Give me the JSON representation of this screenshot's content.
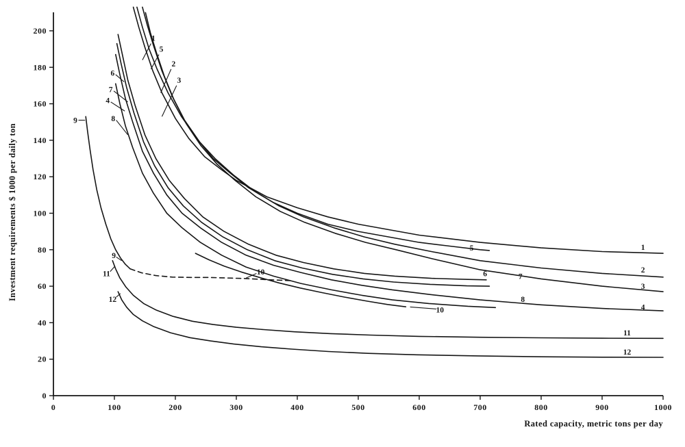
{
  "figure": {
    "background": "#ffffff",
    "ink": "#161616"
  },
  "chart_data": {
    "type": "line",
    "title": "",
    "xlabel": "Rated capacity, metric tons per day",
    "ylabel": "Investment requirements $ 1000 per daily ton",
    "xlim": [
      0,
      1000
    ],
    "ylim": [
      0,
      200
    ],
    "x_ticks": [
      0,
      100,
      200,
      300,
      400,
      500,
      600,
      700,
      800,
      900,
      1000
    ],
    "y_ticks": [
      0,
      20,
      40,
      60,
      80,
      100,
      120,
      140,
      160,
      180,
      200
    ],
    "grid": false,
    "legend": "labels-on-curves",
    "series": [
      {
        "name": "1",
        "style": "solid",
        "points": [
          [
            131,
            213
          ],
          [
            140,
            202
          ],
          [
            150,
            191
          ],
          [
            163,
            178
          ],
          [
            178,
            166
          ],
          [
            200,
            152
          ],
          [
            222,
            141
          ],
          [
            248,
            131
          ],
          [
            275,
            124
          ],
          [
            300,
            118
          ],
          [
            350,
            109
          ],
          [
            400,
            103
          ],
          [
            450,
            98
          ],
          [
            500,
            94
          ],
          [
            550,
            91
          ],
          [
            600,
            88
          ],
          [
            700,
            84
          ],
          [
            800,
            81
          ],
          [
            900,
            79
          ],
          [
            1000,
            78
          ]
        ]
      },
      {
        "name": "5",
        "style": "solid",
        "points": [
          [
            137,
            213
          ],
          [
            146,
            202
          ],
          [
            157,
            190
          ],
          [
            170,
            179
          ],
          [
            188,
            166
          ],
          [
            210,
            153
          ],
          [
            235,
            141
          ],
          [
            262,
            130
          ],
          [
            290,
            122
          ],
          [
            320,
            114
          ],
          [
            360,
            106
          ],
          [
            400,
            100
          ],
          [
            450,
            94
          ],
          [
            500,
            90
          ],
          [
            550,
            87
          ],
          [
            600,
            84
          ],
          [
            650,
            82
          ],
          [
            700,
            80
          ],
          [
            715,
            79.6
          ]
        ]
      },
      {
        "name": "2",
        "style": "solid",
        "points": [
          [
            146,
            213
          ],
          [
            154,
            203
          ],
          [
            164,
            192
          ],
          [
            178,
            178
          ],
          [
            195,
            164
          ],
          [
            215,
            151
          ],
          [
            240,
            139
          ],
          [
            265,
            130
          ],
          [
            295,
            121
          ],
          [
            330,
            112
          ],
          [
            370,
            104
          ],
          [
            410,
            98
          ],
          [
            460,
            92
          ],
          [
            510,
            87
          ],
          [
            560,
            83
          ],
          [
            620,
            79
          ],
          [
            700,
            74
          ],
          [
            800,
            70
          ],
          [
            900,
            67
          ],
          [
            1000,
            65
          ]
        ]
      },
      {
        "name": "3",
        "style": "solid",
        "points": [
          [
            151,
            210
          ],
          [
            159,
            199
          ],
          [
            169,
            188
          ],
          [
            182,
            175
          ],
          [
            198,
            162
          ],
          [
            218,
            149
          ],
          [
            242,
            137
          ],
          [
            268,
            127
          ],
          [
            298,
            118
          ],
          [
            332,
            109
          ],
          [
            372,
            101
          ],
          [
            412,
            95
          ],
          [
            462,
            89
          ],
          [
            512,
            84
          ],
          [
            562,
            80
          ],
          [
            622,
            75
          ],
          [
            700,
            69
          ],
          [
            800,
            64
          ],
          [
            900,
            60
          ],
          [
            1000,
            57
          ]
        ]
      },
      {
        "name": "6",
        "style": "solid",
        "points": [
          [
            106,
            198
          ],
          [
            113,
            187
          ],
          [
            122,
            173
          ],
          [
            134,
            159
          ],
          [
            150,
            143
          ],
          [
            168,
            130
          ],
          [
            190,
            118
          ],
          [
            215,
            108
          ],
          [
            245,
            98
          ],
          [
            280,
            90
          ],
          [
            320,
            83
          ],
          [
            365,
            77
          ],
          [
            410,
            73
          ],
          [
            460,
            69.5
          ],
          [
            510,
            67
          ],
          [
            560,
            65.5
          ],
          [
            620,
            64.3
          ],
          [
            680,
            63.7
          ],
          [
            710,
            63.5
          ]
        ]
      },
      {
        "name": "7",
        "style": "solid",
        "points": [
          [
            104,
            193
          ],
          [
            111,
            182
          ],
          [
            120,
            169
          ],
          [
            132,
            155
          ],
          [
            148,
            139
          ],
          [
            166,
            126
          ],
          [
            188,
            114
          ],
          [
            213,
            104
          ],
          [
            243,
            95
          ],
          [
            278,
            87
          ],
          [
            318,
            80
          ],
          [
            363,
            74
          ],
          [
            408,
            70
          ],
          [
            458,
            66.5
          ],
          [
            508,
            64
          ],
          [
            558,
            62.3
          ],
          [
            618,
            61
          ],
          [
            678,
            60.2
          ],
          [
            715,
            60
          ]
        ]
      },
      {
        "name": "4",
        "style": "solid",
        "points": [
          [
            102,
            187
          ],
          [
            109,
            176
          ],
          [
            118,
            163
          ],
          [
            130,
            150
          ],
          [
            146,
            134
          ],
          [
            164,
            122
          ],
          [
            186,
            110
          ],
          [
            211,
            100
          ],
          [
            241,
            92
          ],
          [
            276,
            84
          ],
          [
            316,
            77
          ],
          [
            361,
            71.5
          ],
          [
            406,
            67.5
          ],
          [
            456,
            63.5
          ],
          [
            506,
            60.5
          ],
          [
            556,
            58
          ],
          [
            616,
            55.5
          ],
          [
            700,
            52.5
          ],
          [
            800,
            49.8
          ],
          [
            900,
            47.8
          ],
          [
            1000,
            46.5
          ]
        ]
      },
      {
        "name": "8",
        "style": "solid",
        "points": [
          [
            102,
            171
          ],
          [
            109,
            160
          ],
          [
            118,
            148
          ],
          [
            130,
            136
          ],
          [
            146,
            122
          ],
          [
            164,
            111
          ],
          [
            186,
            100
          ],
          [
            211,
            92
          ],
          [
            241,
            84
          ],
          [
            276,
            77
          ],
          [
            316,
            70.5
          ],
          [
            361,
            65.5
          ],
          [
            406,
            61.5
          ],
          [
            456,
            58
          ],
          [
            506,
            55
          ],
          [
            556,
            52.5
          ],
          [
            616,
            50.5
          ],
          [
            680,
            49
          ],
          [
            725,
            48.3
          ]
        ]
      },
      {
        "name": "9",
        "style": "solid",
        "points": [
          [
            53,
            153
          ],
          [
            56,
            145
          ],
          [
            60,
            135
          ],
          [
            65,
            124
          ],
          [
            71,
            113
          ],
          [
            78,
            103
          ],
          [
            86,
            94
          ],
          [
            94,
            86
          ],
          [
            102,
            80
          ],
          [
            110,
            75.5
          ],
          [
            118,
            72
          ],
          [
            126,
            69.5
          ]
        ]
      },
      {
        "name": "9-dashed",
        "style": "dashed",
        "points": [
          [
            126,
            69.5
          ],
          [
            145,
            67.3
          ],
          [
            168,
            65.8
          ],
          [
            195,
            65
          ],
          [
            225,
            64.8
          ],
          [
            255,
            64.8
          ],
          [
            285,
            64.5
          ],
          [
            315,
            64.2
          ],
          [
            350,
            63.6
          ],
          [
            392,
            63
          ]
        ]
      },
      {
        "name": "10",
        "style": "solid",
        "points": [
          [
            233,
            78
          ],
          [
            255,
            74.5
          ],
          [
            280,
            71
          ],
          [
            308,
            67.8
          ],
          [
            338,
            64.8
          ],
          [
            370,
            61.8
          ],
          [
            405,
            59
          ],
          [
            440,
            56.5
          ],
          [
            478,
            54
          ],
          [
            515,
            51.8
          ],
          [
            548,
            50
          ],
          [
            578,
            48.7
          ]
        ]
      },
      {
        "name": "11",
        "style": "solid",
        "points": [
          [
            97,
            74
          ],
          [
            102,
            69.5
          ],
          [
            109,
            64.5
          ],
          [
            119,
            59.5
          ],
          [
            131,
            55
          ],
          [
            148,
            50.5
          ],
          [
            168,
            47
          ],
          [
            196,
            43.5
          ],
          [
            228,
            40.8
          ],
          [
            262,
            39
          ],
          [
            300,
            37.5
          ],
          [
            345,
            36.2
          ],
          [
            395,
            35
          ],
          [
            455,
            34
          ],
          [
            520,
            33.2
          ],
          [
            600,
            32.5
          ],
          [
            700,
            32
          ],
          [
            800,
            31.7
          ],
          [
            900,
            31.5
          ],
          [
            1000,
            31.4
          ]
        ]
      },
      {
        "name": "12",
        "style": "solid",
        "points": [
          [
            106,
            57
          ],
          [
            112,
            52.5
          ],
          [
            120,
            48.5
          ],
          [
            131,
            44.5
          ],
          [
            146,
            41
          ],
          [
            165,
            37.8
          ],
          [
            192,
            34.5
          ],
          [
            224,
            31.8
          ],
          [
            258,
            30
          ],
          [
            296,
            28.3
          ],
          [
            341,
            26.8
          ],
          [
            391,
            25.5
          ],
          [
            451,
            24.2
          ],
          [
            516,
            23.2
          ],
          [
            596,
            22.4
          ],
          [
            696,
            21.8
          ],
          [
            800,
            21.3
          ],
          [
            900,
            21.1
          ],
          [
            1000,
            21
          ]
        ]
      }
    ],
    "annotations": [
      {
        "text": "1",
        "x": 164,
        "y": 196,
        "leader": [
          [
            160,
            193
          ],
          [
            146,
            184
          ]
        ]
      },
      {
        "text": "5",
        "x": 177,
        "y": 190,
        "leader": [
          [
            173,
            187
          ],
          [
            160,
            179
          ]
        ]
      },
      {
        "text": "2",
        "x": 197,
        "y": 182,
        "leader": [
          [
            193,
            179
          ],
          [
            176,
            166
          ]
        ]
      },
      {
        "text": "3",
        "x": 206,
        "y": 173,
        "leader": [
          [
            202,
            170
          ],
          [
            178,
            153
          ]
        ]
      },
      {
        "text": "6",
        "x": 97,
        "y": 177,
        "leader": [
          [
            102,
            176
          ],
          [
            116,
            172
          ]
        ]
      },
      {
        "text": "7",
        "x": 94,
        "y": 168,
        "leader": [
          [
            99,
            167
          ],
          [
            122,
            161
          ]
        ]
      },
      {
        "text": "4",
        "x": 89,
        "y": 162,
        "leader": [
          [
            94,
            161
          ],
          [
            117,
            156
          ]
        ]
      },
      {
        "text": "8",
        "x": 98,
        "y": 152,
        "leader": [
          [
            103,
            151
          ],
          [
            122,
            143
          ]
        ]
      },
      {
        "text": "9",
        "x": 36,
        "y": 151,
        "leader": [
          [
            41,
            151
          ],
          [
            52,
            151
          ]
        ]
      },
      {
        "text": "9",
        "x": 99,
        "y": 77,
        "leader": [
          [
            103,
            76
          ],
          [
            112,
            74
          ]
        ]
      },
      {
        "text": "11",
        "x": 87,
        "y": 67,
        "leader": [
          [
            93,
            68
          ],
          [
            101,
            71
          ]
        ]
      },
      {
        "text": "12",
        "x": 97,
        "y": 53,
        "leader": [
          [
            103,
            54
          ],
          [
            110,
            56
          ]
        ]
      },
      {
        "text": "10",
        "x": 340,
        "y": 68,
        "leader": [
          [
            333,
            67
          ],
          [
            316,
            64.5
          ]
        ]
      },
      {
        "text": "10",
        "x": 634,
        "y": 47,
        "leader": [
          [
            628,
            47.5
          ],
          [
            585,
            48.6
          ]
        ]
      },
      {
        "text": "5",
        "x": 686,
        "y": 81,
        "leader": null
      },
      {
        "text": "6",
        "x": 708,
        "y": 67,
        "leader": null
      },
      {
        "text": "7",
        "x": 766,
        "y": 65.5,
        "leader": null
      },
      {
        "text": "8",
        "x": 770,
        "y": 53,
        "leader": null
      },
      {
        "text": "1",
        "x": 967,
        "y": 81.5,
        "leader": null
      },
      {
        "text": "2",
        "x": 967,
        "y": 69,
        "leader": null
      },
      {
        "text": "3",
        "x": 967,
        "y": 60,
        "leader": null
      },
      {
        "text": "4",
        "x": 967,
        "y": 48.5,
        "leader": null
      },
      {
        "text": "11",
        "x": 941,
        "y": 34.5,
        "leader": null
      },
      {
        "text": "12",
        "x": 941,
        "y": 24,
        "leader": null
      }
    ]
  }
}
